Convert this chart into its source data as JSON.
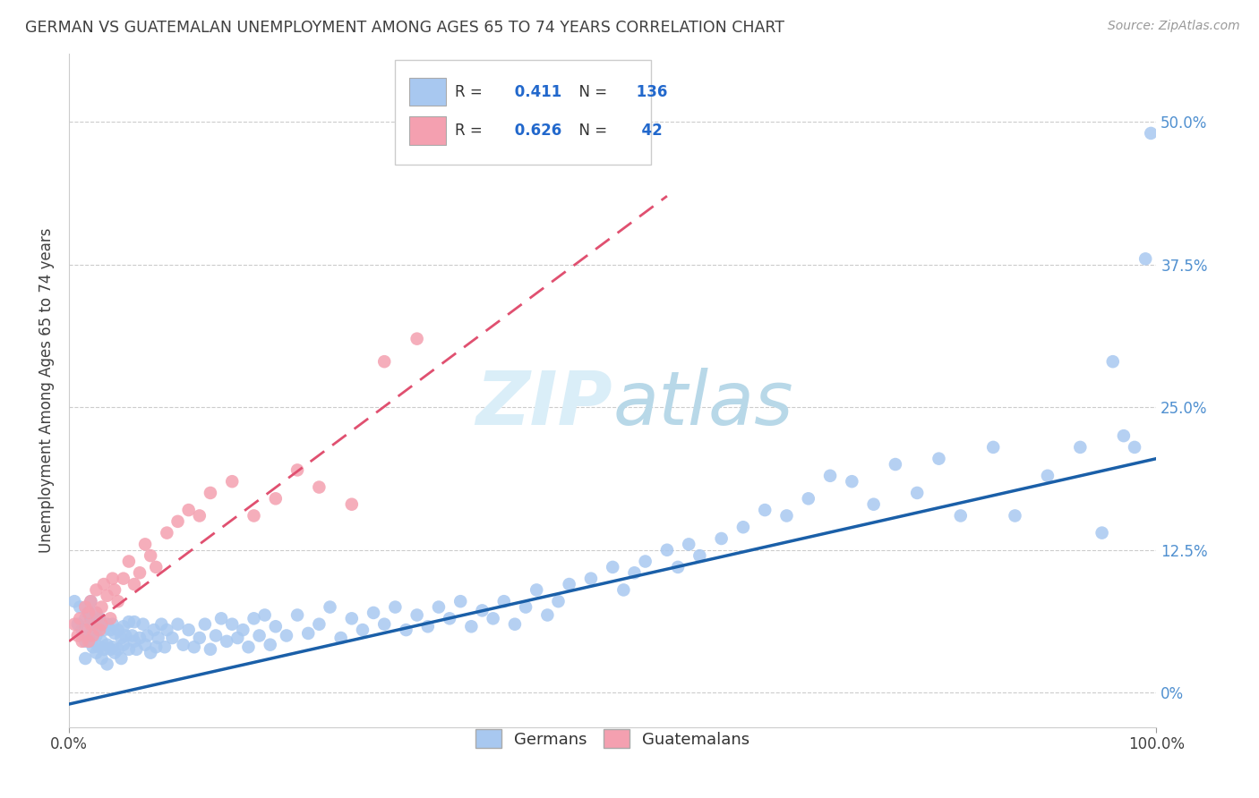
{
  "title": "GERMAN VS GUATEMALAN UNEMPLOYMENT AMONG AGES 65 TO 74 YEARS CORRELATION CHART",
  "source": "Source: ZipAtlas.com",
  "ylabel": "Unemployment Among Ages 65 to 74 years",
  "xlim": [
    0,
    1.0
  ],
  "ylim": [
    -0.03,
    0.56
  ],
  "ytick_values": [
    0.0,
    0.125,
    0.25,
    0.375,
    0.5
  ],
  "ytick_labels": [
    "0%",
    "12.5%",
    "25.0%",
    "37.5%",
    "50.0%"
  ],
  "german_R": 0.411,
  "german_N": 136,
  "guatemalan_R": 0.626,
  "guatemalan_N": 42,
  "german_color": "#a8c8f0",
  "guatemalan_color": "#f4a0b0",
  "german_line_color": "#1a5fa8",
  "guatemalan_line_color": "#e05070",
  "background_color": "#ffffff",
  "grid_color": "#cccccc",
  "title_color": "#404040",
  "source_color": "#999999",
  "watermark_color": "#daeef8",
  "german_points_x": [
    0.005,
    0.008,
    0.01,
    0.012,
    0.015,
    0.015,
    0.015,
    0.018,
    0.018,
    0.02,
    0.02,
    0.02,
    0.022,
    0.022,
    0.025,
    0.025,
    0.025,
    0.025,
    0.028,
    0.028,
    0.03,
    0.03,
    0.03,
    0.032,
    0.032,
    0.035,
    0.035,
    0.035,
    0.038,
    0.038,
    0.04,
    0.04,
    0.042,
    0.042,
    0.045,
    0.045,
    0.048,
    0.048,
    0.05,
    0.05,
    0.052,
    0.055,
    0.055,
    0.058,
    0.06,
    0.06,
    0.062,
    0.065,
    0.068,
    0.07,
    0.072,
    0.075,
    0.078,
    0.08,
    0.082,
    0.085,
    0.088,
    0.09,
    0.095,
    0.1,
    0.105,
    0.11,
    0.115,
    0.12,
    0.125,
    0.13,
    0.135,
    0.14,
    0.145,
    0.15,
    0.155,
    0.16,
    0.165,
    0.17,
    0.175,
    0.18,
    0.185,
    0.19,
    0.2,
    0.21,
    0.22,
    0.23,
    0.24,
    0.25,
    0.26,
    0.27,
    0.28,
    0.29,
    0.3,
    0.31,
    0.32,
    0.33,
    0.34,
    0.35,
    0.36,
    0.37,
    0.38,
    0.39,
    0.4,
    0.41,
    0.42,
    0.43,
    0.44,
    0.45,
    0.46,
    0.48,
    0.5,
    0.51,
    0.52,
    0.53,
    0.55,
    0.56,
    0.57,
    0.58,
    0.6,
    0.62,
    0.64,
    0.66,
    0.68,
    0.7,
    0.72,
    0.74,
    0.76,
    0.78,
    0.8,
    0.82,
    0.85,
    0.87,
    0.9,
    0.93,
    0.95,
    0.96,
    0.97,
    0.98,
    0.99,
    0.995
  ],
  "german_points_y": [
    0.08,
    0.06,
    0.075,
    0.055,
    0.065,
    0.045,
    0.03,
    0.07,
    0.05,
    0.065,
    0.045,
    0.08,
    0.06,
    0.04,
    0.07,
    0.05,
    0.035,
    0.055,
    0.065,
    0.04,
    0.06,
    0.045,
    0.03,
    0.055,
    0.038,
    0.06,
    0.042,
    0.025,
    0.055,
    0.038,
    0.06,
    0.04,
    0.052,
    0.035,
    0.055,
    0.038,
    0.048,
    0.03,
    0.058,
    0.042,
    0.05,
    0.062,
    0.038,
    0.05,
    0.045,
    0.062,
    0.038,
    0.048,
    0.06,
    0.042,
    0.05,
    0.035,
    0.055,
    0.04,
    0.048,
    0.06,
    0.04,
    0.055,
    0.048,
    0.06,
    0.042,
    0.055,
    0.04,
    0.048,
    0.06,
    0.038,
    0.05,
    0.065,
    0.045,
    0.06,
    0.048,
    0.055,
    0.04,
    0.065,
    0.05,
    0.068,
    0.042,
    0.058,
    0.05,
    0.068,
    0.052,
    0.06,
    0.075,
    0.048,
    0.065,
    0.055,
    0.07,
    0.06,
    0.075,
    0.055,
    0.068,
    0.058,
    0.075,
    0.065,
    0.08,
    0.058,
    0.072,
    0.065,
    0.08,
    0.06,
    0.075,
    0.09,
    0.068,
    0.08,
    0.095,
    0.1,
    0.11,
    0.09,
    0.105,
    0.115,
    0.125,
    0.11,
    0.13,
    0.12,
    0.135,
    0.145,
    0.16,
    0.155,
    0.17,
    0.19,
    0.185,
    0.165,
    0.2,
    0.175,
    0.205,
    0.155,
    0.215,
    0.155,
    0.19,
    0.215,
    0.14,
    0.29,
    0.225,
    0.215,
    0.38,
    0.49
  ],
  "guatemalan_points_x": [
    0.005,
    0.008,
    0.01,
    0.012,
    0.015,
    0.015,
    0.018,
    0.018,
    0.02,
    0.02,
    0.022,
    0.025,
    0.025,
    0.028,
    0.03,
    0.03,
    0.032,
    0.035,
    0.038,
    0.04,
    0.042,
    0.045,
    0.05,
    0.055,
    0.06,
    0.065,
    0.07,
    0.075,
    0.08,
    0.09,
    0.1,
    0.11,
    0.12,
    0.13,
    0.15,
    0.17,
    0.19,
    0.21,
    0.23,
    0.26,
    0.29,
    0.32
  ],
  "guatemalan_points_y": [
    0.06,
    0.05,
    0.065,
    0.045,
    0.055,
    0.075,
    0.045,
    0.07,
    0.06,
    0.08,
    0.05,
    0.07,
    0.09,
    0.055,
    0.075,
    0.06,
    0.095,
    0.085,
    0.065,
    0.1,
    0.09,
    0.08,
    0.1,
    0.115,
    0.095,
    0.105,
    0.13,
    0.12,
    0.11,
    0.14,
    0.15,
    0.16,
    0.155,
    0.175,
    0.185,
    0.155,
    0.17,
    0.195,
    0.18,
    0.165,
    0.29,
    0.31
  ],
  "german_line_x": [
    0.0,
    1.0
  ],
  "german_line_y": [
    -0.01,
    0.205
  ],
  "guatemalan_line_x": [
    0.0,
    0.55
  ],
  "guatemalan_line_y": [
    0.045,
    0.435
  ]
}
